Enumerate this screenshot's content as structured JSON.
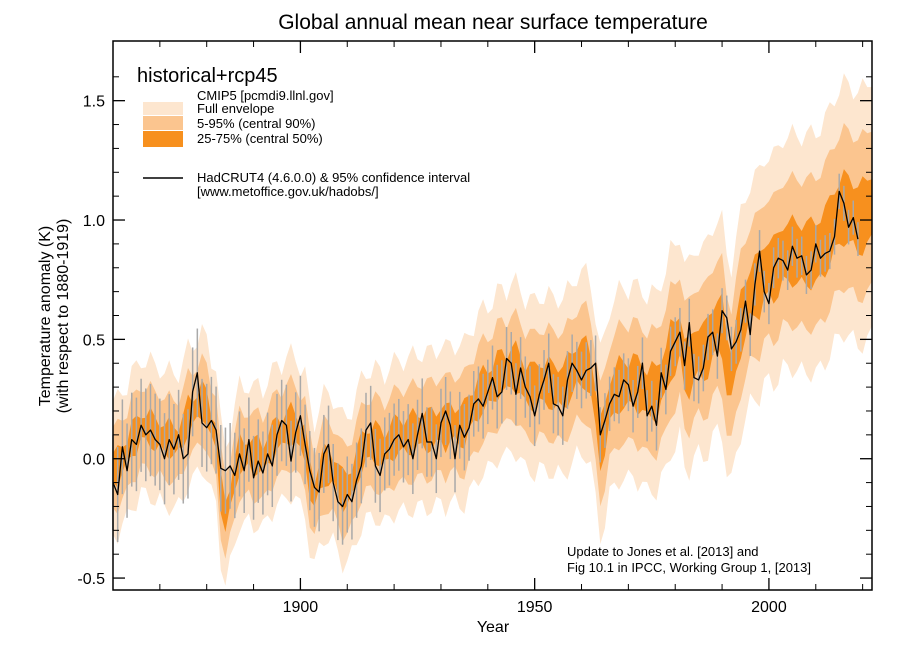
{
  "chart_data": {
    "type": "area",
    "title": "Global annual mean near surface temperature",
    "xlabel": "Year",
    "ylabel": "Temperature anomaly (K)",
    "ylabel2": "(with respect to 1880-1919)",
    "xlim": [
      1860,
      2022
    ],
    "ylim": [
      -0.55,
      1.75
    ],
    "xticks": [
      1900,
      1950,
      2000
    ],
    "xtick_labels": [
      "1900",
      "1950",
      "2000"
    ],
    "yticks": [
      -0.5,
      0.0,
      0.5,
      1.0,
      1.5
    ],
    "ytick_labels": [
      "-0.5",
      "0.0",
      "0.5",
      "1.0",
      "1.5"
    ],
    "grid": false,
    "legend": {
      "placement": "top-left",
      "heading": "historical+rcp45",
      "cmip_label": "CMIP5  [pcmdi9.llnl.gov]",
      "bands": [
        {
          "label": "Full envelope",
          "color": "#fde6cf"
        },
        {
          "label": "5-95% (central 90%)",
          "color": "#fbc58f"
        },
        {
          "label": "25-75% (central 50%)",
          "color": "#f7901e"
        }
      ],
      "obs_label": "HadCRUT4 (4.6.0.0) & 95% confidence interval",
      "obs_source": "[www.metoffice.gov.uk/hadobs/]"
    },
    "annotation": {
      "line1": "Update to Jones et al. [2013] and",
      "line2": "Fig 10.1 in IPCC, Working Group 1, [2013]",
      "placement": "bottom-right"
    },
    "colors": {
      "full_envelope": "#fde6cf",
      "p5_95": "#fbc58f",
      "p25_75": "#f7901e",
      "observations": "#000000",
      "confidence_interval": "#a9a9a9"
    },
    "series": [
      {
        "name": "HadCRUT4 (4.6.0.0) & 95% confidence interval",
        "x": [
          1860,
          1861,
          1862,
          1863,
          1864,
          1865,
          1866,
          1867,
          1868,
          1869,
          1870,
          1871,
          1872,
          1873,
          1874,
          1875,
          1876,
          1877,
          1878,
          1879,
          1880,
          1881,
          1882,
          1883,
          1884,
          1885,
          1886,
          1887,
          1888,
          1889,
          1890,
          1891,
          1892,
          1893,
          1894,
          1895,
          1896,
          1897,
          1898,
          1899,
          1900,
          1901,
          1902,
          1903,
          1904,
          1905,
          1906,
          1907,
          1908,
          1909,
          1910,
          1911,
          1912,
          1913,
          1914,
          1915,
          1916,
          1917,
          1918,
          1919,
          1920,
          1921,
          1922,
          1923,
          1924,
          1925,
          1926,
          1927,
          1928,
          1929,
          1930,
          1931,
          1932,
          1933,
          1934,
          1935,
          1936,
          1937,
          1938,
          1939,
          1940,
          1941,
          1942,
          1943,
          1944,
          1945,
          1946,
          1947,
          1948,
          1949,
          1950,
          1951,
          1952,
          1953,
          1954,
          1955,
          1956,
          1957,
          1958,
          1959,
          1960,
          1961,
          1962,
          1963,
          1964,
          1965,
          1966,
          1967,
          1968,
          1969,
          1970,
          1971,
          1972,
          1973,
          1974,
          1975,
          1976,
          1977,
          1978,
          1979,
          1980,
          1981,
          1982,
          1983,
          1984,
          1985,
          1986,
          1987,
          1988,
          1989,
          1990,
          1991,
          1992,
          1993,
          1994,
          1995,
          1996,
          1997,
          1998,
          1999,
          2000,
          2001,
          2002,
          2003,
          2004,
          2005,
          2006,
          2007,
          2008,
          2009,
          2010,
          2011,
          2012,
          2013,
          2014,
          2015,
          2016,
          2017,
          2018,
          2019
        ],
        "values": [
          -0.1,
          -0.15,
          0.05,
          -0.05,
          0.08,
          0.06,
          0.14,
          0.1,
          0.12,
          0.08,
          0.06,
          0.0,
          0.08,
          0.04,
          0.1,
          0.0,
          0.02,
          0.28,
          0.36,
          0.15,
          0.13,
          0.16,
          0.12,
          -0.04,
          -0.05,
          -0.03,
          -0.07,
          0.02,
          -0.05,
          0.08,
          -0.08,
          -0.01,
          -0.06,
          0.02,
          -0.03,
          0.1,
          0.16,
          0.14,
          -0.01,
          0.11,
          0.18,
          0.06,
          -0.05,
          -0.12,
          -0.14,
          0.02,
          0.06,
          -0.1,
          -0.18,
          -0.2,
          -0.15,
          -0.18,
          -0.09,
          -0.03,
          0.12,
          0.15,
          -0.03,
          -0.07,
          0.02,
          0.04,
          0.08,
          0.1,
          0.05,
          0.08,
          0.0,
          0.1,
          0.19,
          0.07,
          0.07,
          0.0,
          0.15,
          0.2,
          0.14,
          0.0,
          0.14,
          0.09,
          0.13,
          0.23,
          0.25,
          0.22,
          0.28,
          0.34,
          0.26,
          0.28,
          0.42,
          0.4,
          0.27,
          0.38,
          0.3,
          0.26,
          0.18,
          0.27,
          0.33,
          0.4,
          0.23,
          0.22,
          0.18,
          0.33,
          0.4,
          0.37,
          0.33,
          0.37,
          0.38,
          0.4,
          0.1,
          0.16,
          0.23,
          0.27,
          0.26,
          0.33,
          0.31,
          0.22,
          0.28,
          0.4,
          0.18,
          0.22,
          0.14,
          0.36,
          0.29,
          0.45,
          0.49,
          0.53,
          0.39,
          0.57,
          0.34,
          0.33,
          0.38,
          0.51,
          0.53,
          0.43,
          0.62,
          0.59,
          0.46,
          0.49,
          0.54,
          0.66,
          0.52,
          0.73,
          0.87,
          0.7,
          0.65,
          0.8,
          0.84,
          0.83,
          0.79,
          0.89,
          0.84,
          0.85,
          0.77,
          0.79,
          0.9,
          0.84,
          0.86,
          0.87,
          0.93,
          1.12,
          1.07,
          0.97,
          1.01,
          0.92
        ]
      }
    ]
  }
}
